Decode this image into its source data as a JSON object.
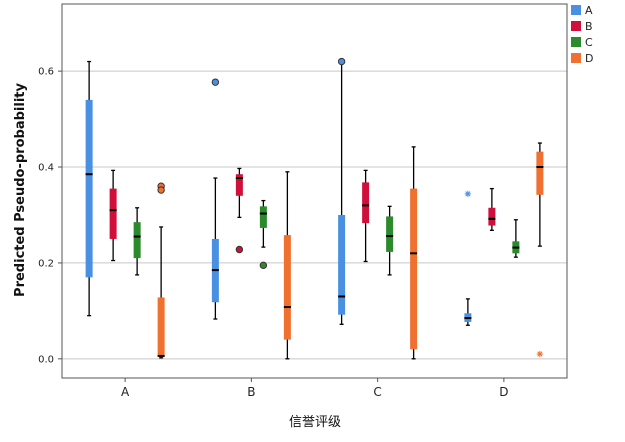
{
  "chart_data": {
    "type": "boxplot",
    "ylabel": "Predicted Pseudo-probability",
    "xlabel": "信誉评级",
    "ylim": [
      -0.04,
      0.74
    ],
    "yticks": [
      0.0,
      0.2,
      0.4,
      0.6
    ],
    "ytick_labels": [
      "0.0",
      "0.2",
      "0.4",
      "0.6"
    ],
    "grid": "horizontal",
    "legend_position": "top-right",
    "categories": [
      "A",
      "B",
      "C",
      "D"
    ],
    "series": [
      {
        "name": "A",
        "color": "#4a90e2"
      },
      {
        "name": "B",
        "color": "#d0103a"
      },
      {
        "name": "C",
        "color": "#2b8a2b"
      },
      {
        "name": "D",
        "color": "#f07030"
      }
    ],
    "boxes": [
      {
        "category": "A",
        "series": "A",
        "whisker_low": 0.09,
        "q1": 0.17,
        "median": 0.385,
        "q3": 0.54,
        "whisker_high": 0.62,
        "outliers": []
      },
      {
        "category": "A",
        "series": "B",
        "whisker_low": 0.205,
        "q1": 0.25,
        "median": 0.31,
        "q3": 0.355,
        "whisker_high": 0.393,
        "outliers": []
      },
      {
        "category": "A",
        "series": "C",
        "whisker_low": 0.175,
        "q1": 0.21,
        "median": 0.255,
        "q3": 0.285,
        "whisker_high": 0.315,
        "outliers": []
      },
      {
        "category": "A",
        "series": "D",
        "whisker_low": 0.002,
        "q1": 0.005,
        "median": 0.006,
        "q3": 0.128,
        "whisker_high": 0.275,
        "outliers": [
          {
            "value": 0.36,
            "marker": "circle"
          },
          {
            "value": 0.352,
            "marker": "circle"
          }
        ]
      },
      {
        "category": "B",
        "series": "A",
        "whisker_low": 0.083,
        "q1": 0.118,
        "median": 0.185,
        "q3": 0.25,
        "whisker_high": 0.377,
        "outliers": [
          {
            "value": 0.577,
            "marker": "circle"
          }
        ]
      },
      {
        "category": "B",
        "series": "B",
        "whisker_low": 0.295,
        "q1": 0.34,
        "median": 0.377,
        "q3": 0.385,
        "whisker_high": 0.397,
        "outliers": [
          {
            "value": 0.228,
            "marker": "circle"
          }
        ]
      },
      {
        "category": "B",
        "series": "C",
        "whisker_low": 0.233,
        "q1": 0.273,
        "median": 0.303,
        "q3": 0.318,
        "whisker_high": 0.33,
        "outliers": [
          {
            "value": 0.195,
            "marker": "circle"
          }
        ]
      },
      {
        "category": "B",
        "series": "D",
        "whisker_low": 0.0,
        "q1": 0.04,
        "median": 0.108,
        "q3": 0.258,
        "whisker_high": 0.39,
        "outliers": []
      },
      {
        "category": "C",
        "series": "A",
        "whisker_low": 0.072,
        "q1": 0.092,
        "median": 0.13,
        "q3": 0.3,
        "whisker_high": 0.62,
        "outliers": [
          {
            "value": 0.62,
            "marker": "circle"
          }
        ]
      },
      {
        "category": "C",
        "series": "B",
        "whisker_low": 0.203,
        "q1": 0.283,
        "median": 0.32,
        "q3": 0.368,
        "whisker_high": 0.393,
        "outliers": []
      },
      {
        "category": "C",
        "series": "C",
        "whisker_low": 0.175,
        "q1": 0.223,
        "median": 0.256,
        "q3": 0.297,
        "whisker_high": 0.318,
        "outliers": []
      },
      {
        "category": "C",
        "series": "D",
        "whisker_low": 0.0,
        "q1": 0.02,
        "median": 0.22,
        "q3": 0.355,
        "whisker_high": 0.442,
        "outliers": []
      },
      {
        "category": "D",
        "series": "A",
        "whisker_low": 0.07,
        "q1": 0.077,
        "median": 0.085,
        "q3": 0.095,
        "whisker_high": 0.125,
        "outliers": [
          {
            "value": 0.344,
            "marker": "star"
          }
        ]
      },
      {
        "category": "D",
        "series": "B",
        "whisker_low": 0.268,
        "q1": 0.278,
        "median": 0.292,
        "q3": 0.315,
        "whisker_high": 0.355,
        "outliers": []
      },
      {
        "category": "D",
        "series": "C",
        "whisker_low": 0.212,
        "q1": 0.22,
        "median": 0.232,
        "q3": 0.245,
        "whisker_high": 0.29,
        "outliers": []
      },
      {
        "category": "D",
        "series": "D",
        "whisker_low": 0.235,
        "q1": 0.342,
        "median": 0.4,
        "q3": 0.432,
        "whisker_high": 0.45,
        "outliers": [
          {
            "value": 0.01,
            "marker": "star"
          }
        ]
      }
    ]
  }
}
